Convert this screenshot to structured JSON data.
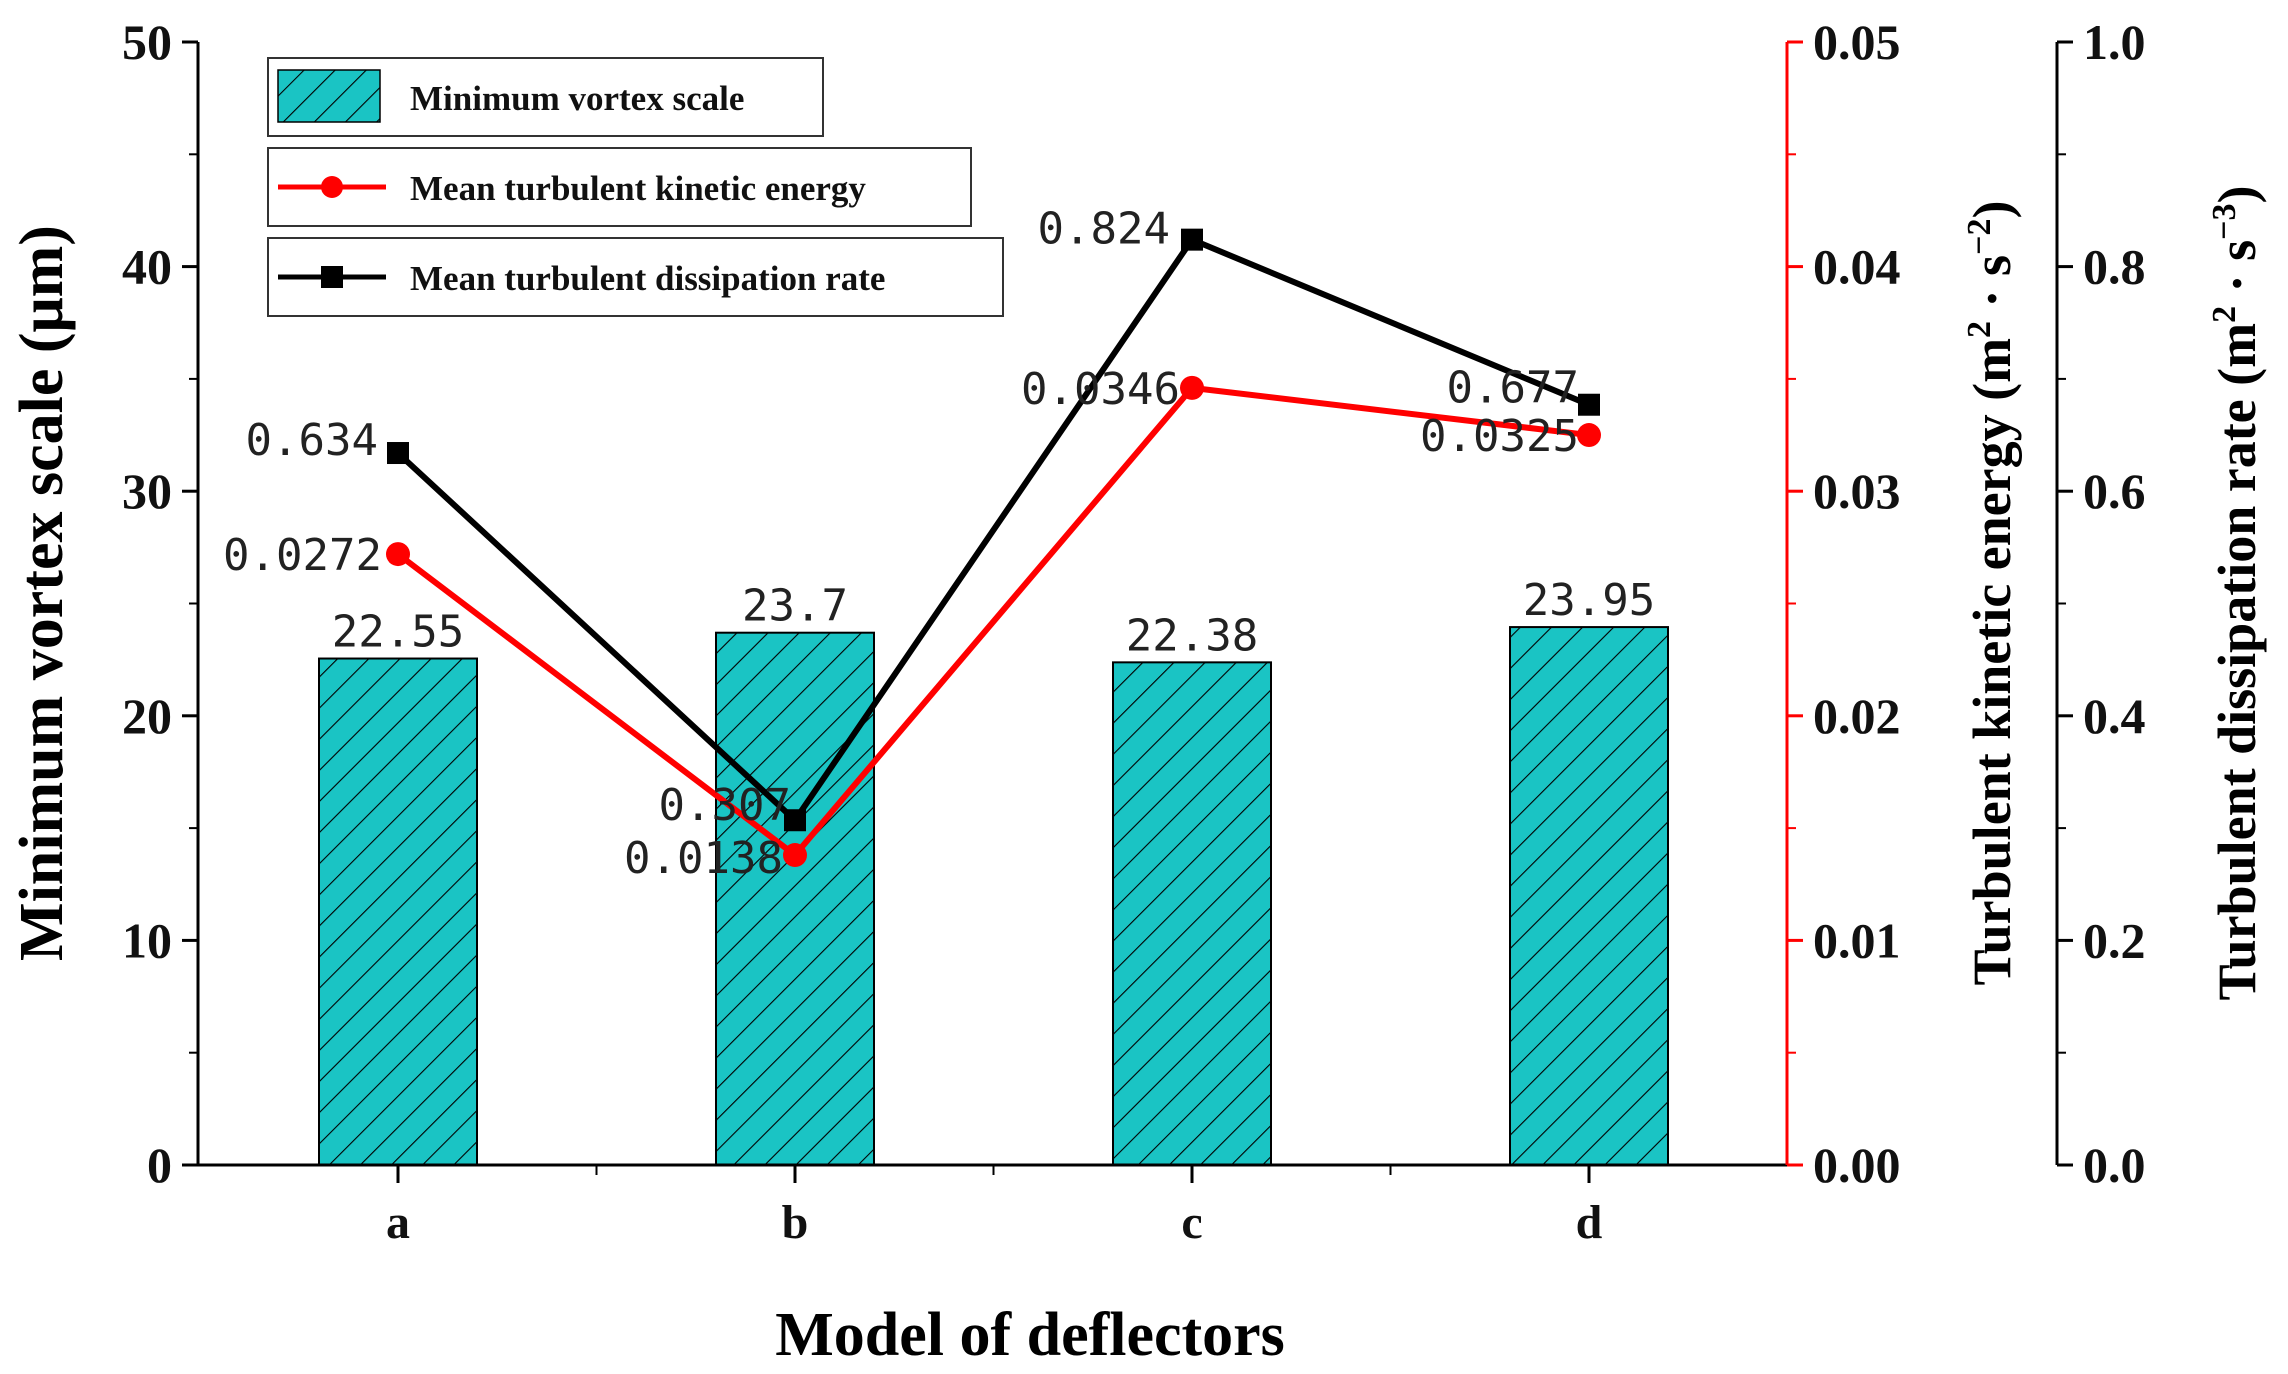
{
  "chart_data": {
    "type": "bar",
    "xlabel": "Model of deflectors",
    "categories": [
      "a",
      "b",
      "c",
      "d"
    ],
    "left_axis": {
      "label_main": "Minimum vortex scale (μm)",
      "ylim": [
        0,
        50
      ],
      "ticks": [
        0,
        10,
        20,
        30,
        40,
        50
      ]
    },
    "right_axis_1": {
      "label_main": "Turbulent kinetic energy (m",
      "sup1": "2",
      "mid": " · s",
      "sup2": "−2",
      "end": ")",
      "ylim": [
        0,
        0.05
      ],
      "ticks": [
        "0.00",
        "0.01",
        "0.02",
        "0.03",
        "0.04",
        "0.05"
      ],
      "color": "#ff0000"
    },
    "right_axis_2": {
      "label_main": "Turbulent dissipation rate (m",
      "sup1": "2",
      "mid": " · s",
      "sup2": "−3",
      "end": ")",
      "ylim": [
        0,
        1.0
      ],
      "ticks": [
        "0.0",
        "0.2",
        "0.4",
        "0.6",
        "0.8",
        "1.0"
      ]
    },
    "series": [
      {
        "name": "Minimum vortex scale",
        "kind": "bar",
        "axis": "left",
        "values": [
          22.55,
          23.7,
          22.38,
          23.95
        ],
        "labels": [
          "22.55",
          "23.7",
          "22.38",
          "23.95"
        ],
        "color": "#1ac4c4"
      },
      {
        "name": "Mean turbulent kinetic energy",
        "kind": "line",
        "axis": "right1",
        "values": [
          0.0272,
          0.0138,
          0.0346,
          0.0325
        ],
        "labels": [
          "0.0272",
          "0.0138",
          "0.0346",
          "0.0325"
        ],
        "color": "#ff0000",
        "marker": "circle"
      },
      {
        "name": "Mean turbulent dissipation rate",
        "kind": "line",
        "axis": "right2",
        "values": [
          0.634,
          0.307,
          0.824,
          0.677
        ],
        "labels": [
          "0.634",
          "0.307",
          "0.824",
          "0.677"
        ],
        "color": "#000000",
        "marker": "square"
      }
    ],
    "legend_position": "top-left"
  }
}
